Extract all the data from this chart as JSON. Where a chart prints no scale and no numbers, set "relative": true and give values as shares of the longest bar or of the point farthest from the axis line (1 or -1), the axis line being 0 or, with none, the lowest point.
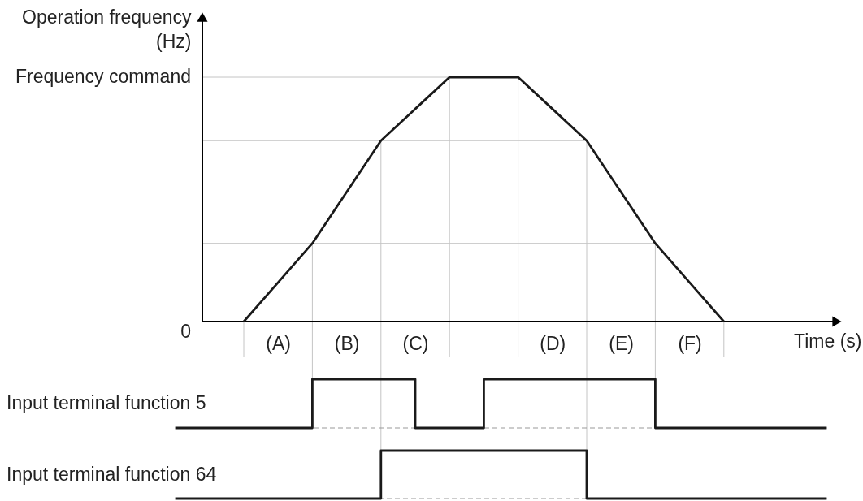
{
  "chart_data": [
    {
      "type": "line",
      "ylabel": "Operation frequency (Hz)",
      "xlabel": "Time (s)",
      "relative": true,
      "categories": [
        null,
        "(A)",
        null,
        "(B)",
        null,
        "(C)",
        null,
        null,
        null,
        "(D)",
        null,
        "(E)",
        null,
        "(F)",
        null
      ],
      "values": [
        0,
        0.16,
        0.32,
        0.53,
        0.74,
        0.87,
        1,
        1,
        1,
        0.87,
        0.74,
        0.53,
        0.32,
        0.16,
        0
      ],
      "color": "#1a1a1a",
      "ref_lines": [
        {
          "axis": "y",
          "value": 1,
          "label": "Frequency command",
          "color": "#c4c4c4"
        },
        {
          "axis": "y",
          "value": 0.74,
          "color": "#c4c4c4"
        },
        {
          "axis": "y",
          "value": 0.32,
          "color": "#c4c4c4"
        }
      ],
      "annotations": [
        "0"
      ],
      "grid": "x"
    },
    {
      "type": "step",
      "relative": true,
      "categories": [
        null,
        null,
        null,
        null,
        null,
        null,
        null,
        null,
        null,
        null,
        null,
        null,
        null,
        null,
        null,
        null,
        null,
        null,
        null,
        null
      ],
      "series": [
        {
          "name": "Input terminal function 5",
          "color": "#1a1a1a",
          "values": [
            0,
            0,
            0,
            0,
            1,
            1,
            1,
            0,
            0,
            1,
            1,
            1,
            1,
            1,
            0,
            0,
            0,
            0,
            0,
            0
          ]
        }
      ],
      "ref_lines": [
        {
          "axis": "y",
          "value": 0,
          "color": "#999999",
          "line_style": "dashed"
        }
      ]
    },
    {
      "type": "step",
      "relative": true,
      "categories": [
        null,
        null,
        null,
        null,
        null,
        null,
        null,
        null,
        null,
        null,
        null,
        null,
        null,
        null,
        null,
        null,
        null,
        null,
        null,
        null
      ],
      "series": [
        {
          "name": "Input terminal function 64",
          "color": "#1a1a1a",
          "values": [
            0,
            0,
            0,
            0,
            0,
            0,
            1,
            1,
            1,
            1,
            1,
            1,
            0,
            0,
            0,
            0,
            0,
            0,
            0,
            0
          ]
        }
      ],
      "ref_lines": [
        {
          "axis": "y",
          "value": 0,
          "color": "#999999",
          "line_style": "dashed"
        }
      ]
    }
  ]
}
